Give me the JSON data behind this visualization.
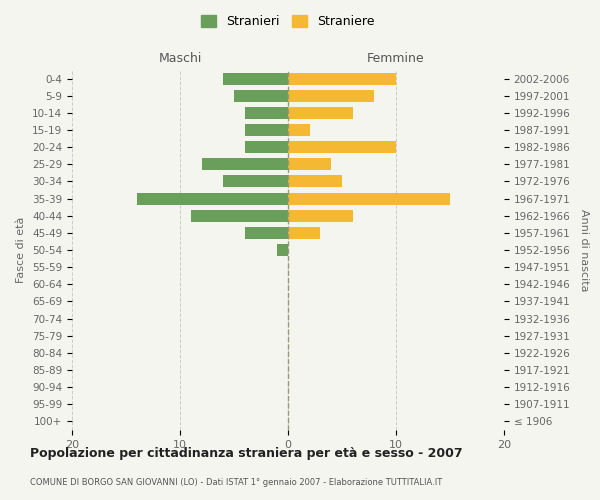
{
  "age_groups": [
    "100+",
    "95-99",
    "90-94",
    "85-89",
    "80-84",
    "75-79",
    "70-74",
    "65-69",
    "60-64",
    "55-59",
    "50-54",
    "45-49",
    "40-44",
    "35-39",
    "30-34",
    "25-29",
    "20-24",
    "15-19",
    "10-14",
    "5-9",
    "0-4"
  ],
  "birth_years": [
    "≤ 1906",
    "1907-1911",
    "1912-1916",
    "1917-1921",
    "1922-1926",
    "1927-1931",
    "1932-1936",
    "1937-1941",
    "1942-1946",
    "1947-1951",
    "1952-1956",
    "1957-1961",
    "1962-1966",
    "1967-1971",
    "1972-1976",
    "1977-1981",
    "1982-1986",
    "1987-1991",
    "1992-1996",
    "1997-2001",
    "2002-2006"
  ],
  "maschi": [
    0,
    0,
    0,
    0,
    0,
    0,
    0,
    0,
    0,
    0,
    1,
    4,
    9,
    14,
    6,
    8,
    4,
    4,
    4,
    5,
    6
  ],
  "femmine": [
    0,
    0,
    0,
    0,
    0,
    0,
    0,
    0,
    0,
    0,
    0,
    3,
    6,
    15,
    5,
    4,
    10,
    2,
    6,
    8,
    10
  ],
  "color_maschi": "#6a9e5b",
  "color_femmine": "#f5b832",
  "title": "Popolazione per cittadinanza straniera per età e sesso - 2007",
  "subtitle": "COMUNE DI BORGO SAN GIOVANNI (LO) - Dati ISTAT 1° gennaio 2007 - Elaborazione TUTTITALIA.IT",
  "ylabel_left": "Fasce di età",
  "ylabel_right": "Anni di nascita",
  "xlabel_left": "Maschi",
  "xlabel_right": "Femmine",
  "legend_maschi": "Stranieri",
  "legend_femmine": "Straniere",
  "xlim": 20,
  "bg_color": "#f5f5f0",
  "grid_color": "#cccccc"
}
